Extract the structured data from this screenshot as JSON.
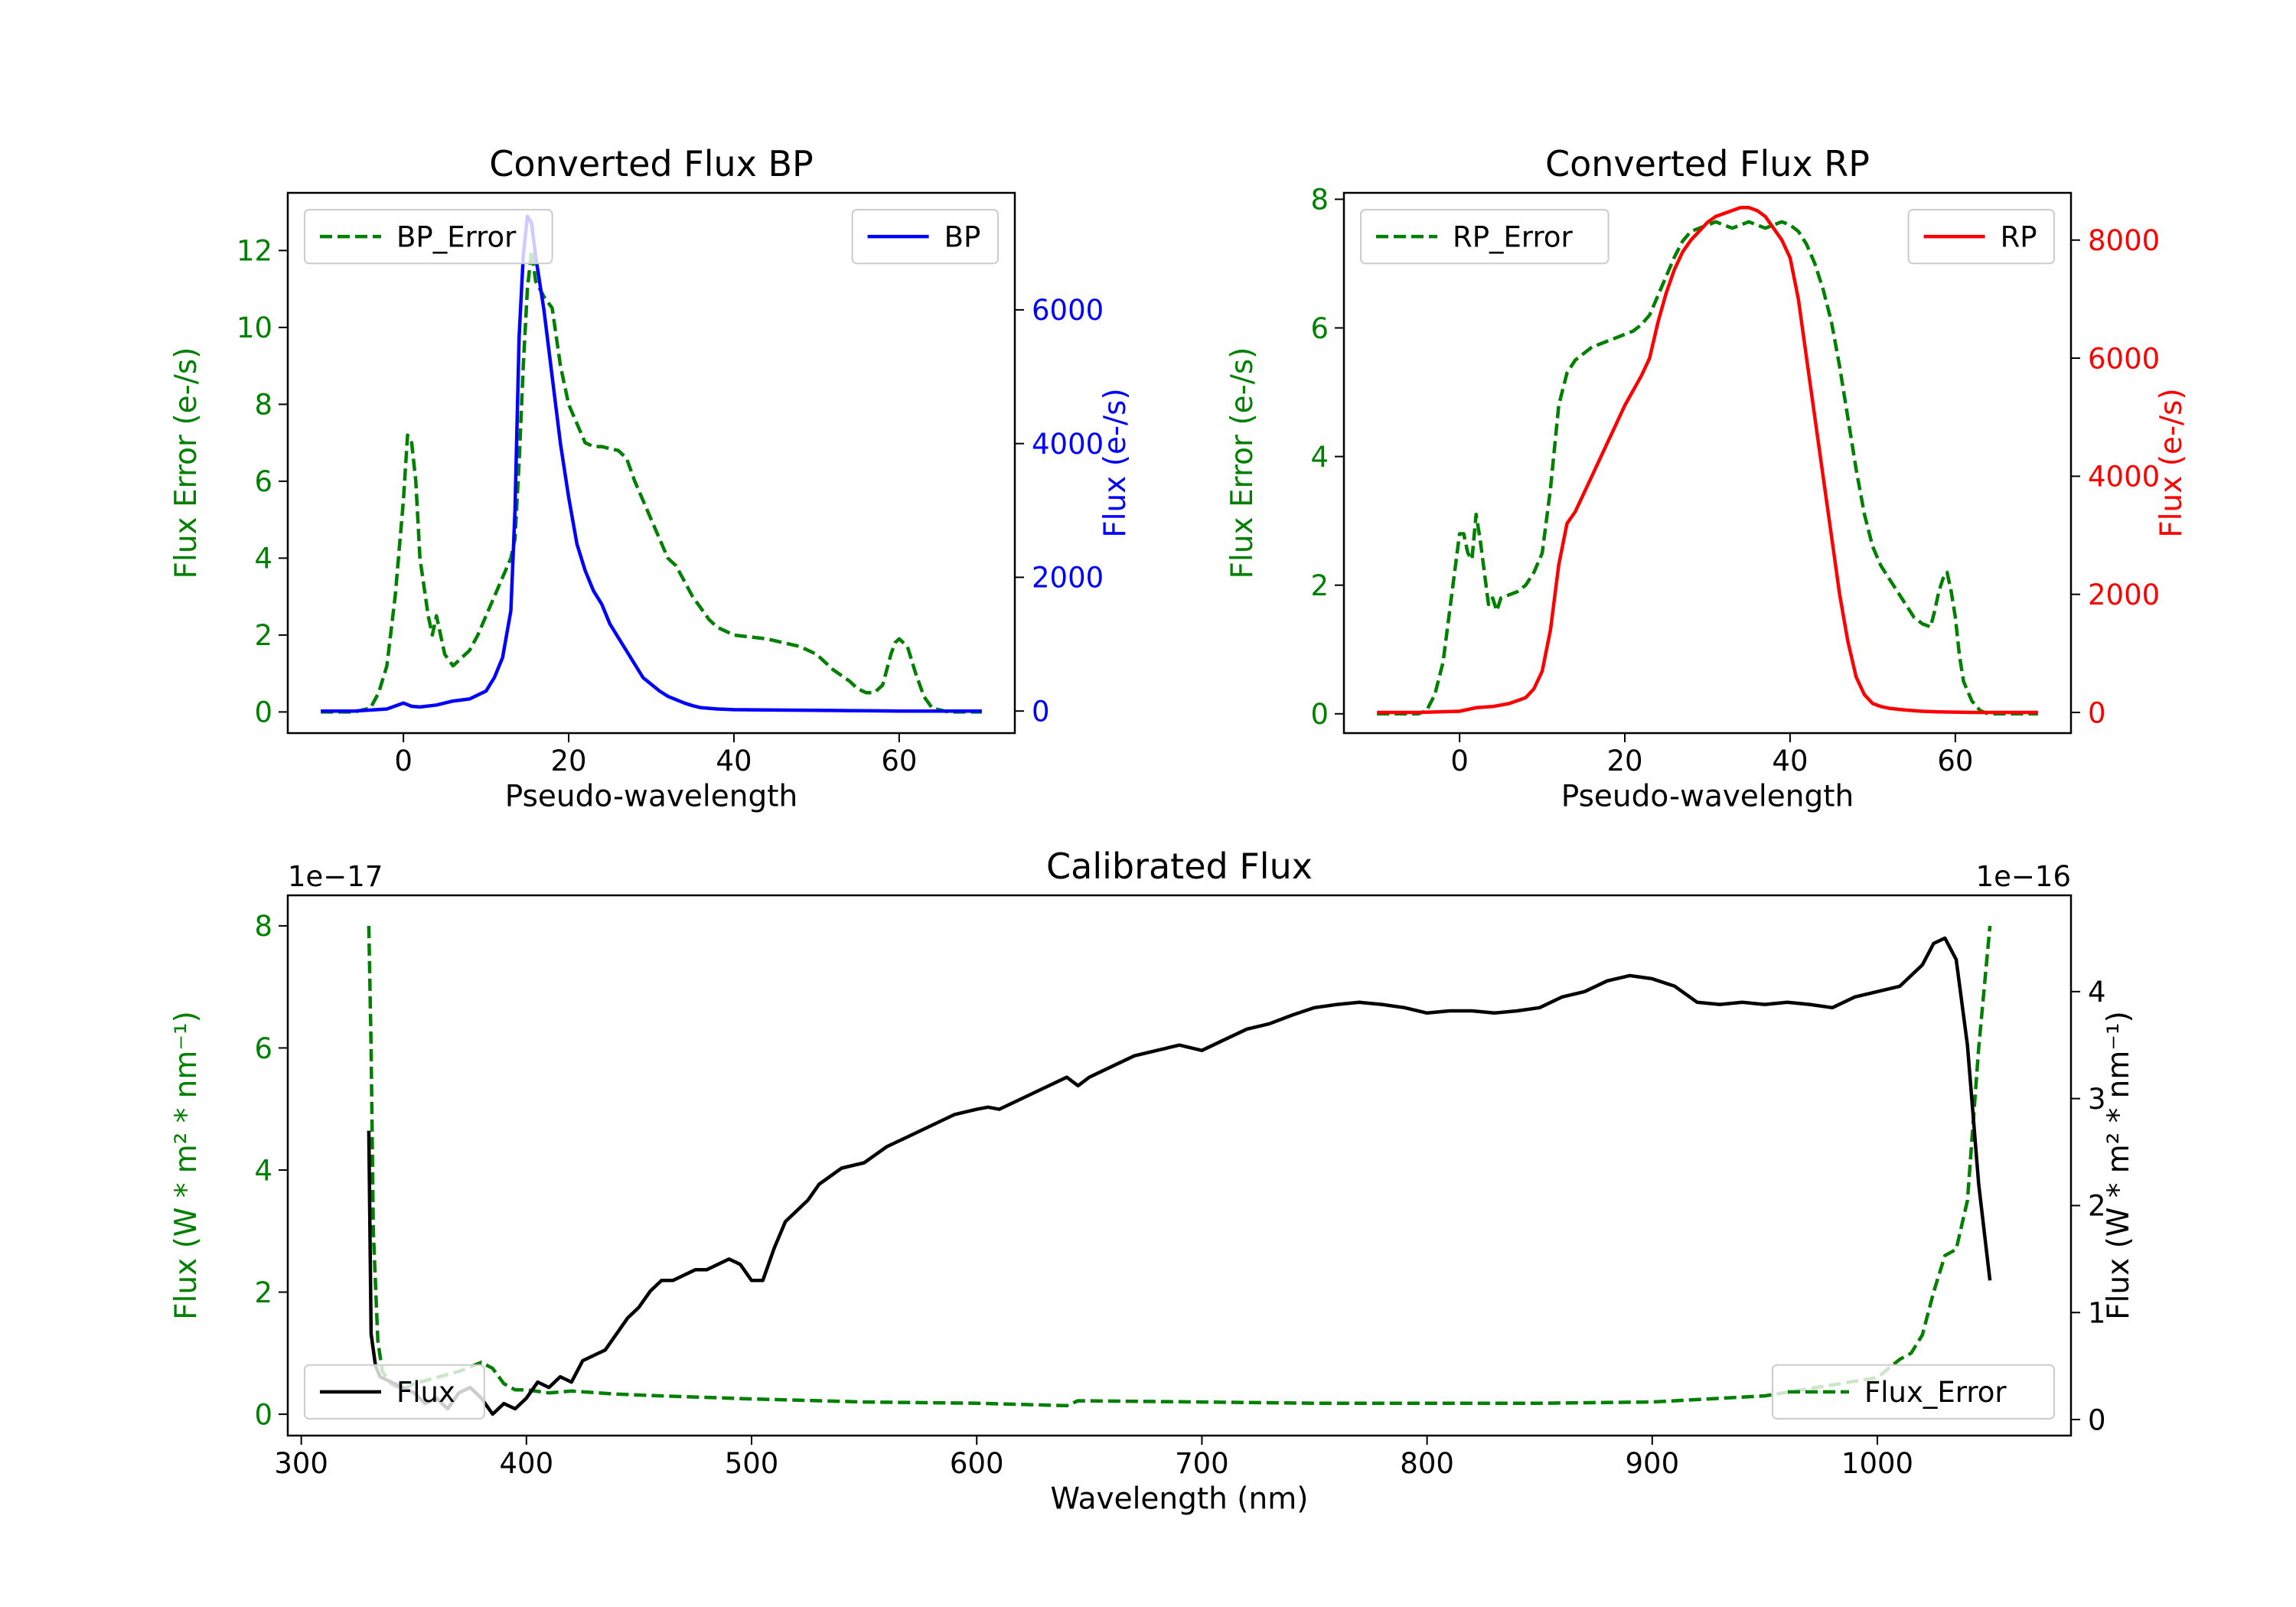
{
  "colors": {
    "error": "#008000",
    "bp": "#0000ff",
    "rp": "#ff0000",
    "flux": "#000000",
    "axis": "#000000"
  },
  "chart_data": [
    {
      "type": "line",
      "id": "bp",
      "title": "Converted Flux BP",
      "xlabel": "Pseudo-wavelength",
      "xlim": [
        -14,
        74
      ],
      "xticks": [
        0,
        20,
        40,
        60
      ],
      "left_axis": {
        "label": "Flux Error (e-/s)",
        "ylim": [
          -0.55,
          13.5
        ],
        "ticks": [
          0,
          2,
          4,
          6,
          8,
          10,
          12
        ]
      },
      "right_axis": {
        "label": "Flux (e-/s)",
        "ylim": [
          -330,
          7750
        ],
        "ticks": [
          0,
          2000,
          4000,
          6000
        ]
      },
      "series": [
        {
          "name": "BP_Error",
          "axis": "left",
          "style": "dashed",
          "color_key": "error",
          "x": [
            -10,
            -6,
            -4,
            -3,
            -2,
            -1,
            0,
            0.5,
            1,
            1.5,
            2,
            3,
            3.5,
            4,
            4.5,
            5,
            6,
            7,
            8,
            9,
            10,
            11,
            12,
            13,
            13.5,
            14,
            14.5,
            15,
            15.5,
            16,
            17,
            18,
            19,
            20,
            21,
            22,
            23,
            24,
            25,
            26,
            27,
            28,
            29,
            30,
            31,
            32,
            33,
            34,
            35,
            36,
            37,
            38,
            39,
            40,
            42,
            44,
            46,
            48,
            50,
            52,
            54,
            55,
            56,
            57,
            58,
            59,
            59.5,
            60,
            61,
            62,
            63,
            64,
            66,
            68,
            70
          ],
          "y": [
            0,
            0,
            0.1,
            0.5,
            1.2,
            3,
            5.5,
            7.2,
            7,
            6,
            4,
            2.5,
            2,
            2.5,
            2,
            1.5,
            1.2,
            1.4,
            1.6,
            2,
            2.5,
            3,
            3.5,
            4,
            4.5,
            6.5,
            9,
            11,
            12,
            11.2,
            10.8,
            10.5,
            9,
            8,
            7.5,
            7,
            6.9,
            6.9,
            6.85,
            6.8,
            6.6,
            6,
            5.5,
            5,
            4.5,
            4,
            3.8,
            3.4,
            3,
            2.7,
            2.4,
            2.2,
            2.1,
            2,
            1.95,
            1.9,
            1.8,
            1.7,
            1.5,
            1.1,
            0.8,
            0.6,
            0.5,
            0.5,
            0.7,
            1.5,
            1.8,
            1.9,
            1.7,
            1,
            0.4,
            0.1,
            0,
            0,
            0
          ]
        },
        {
          "name": "BP",
          "axis": "right",
          "style": "solid",
          "color_key": "bp",
          "x": [
            -10,
            -6,
            -2,
            0,
            1,
            2,
            4,
            6,
            8,
            10,
            11,
            12,
            13,
            13.5,
            14,
            14.5,
            15,
            15.5,
            16,
            17,
            18,
            19,
            20,
            21,
            22,
            23,
            24,
            25,
            26,
            27,
            28,
            29,
            30,
            31,
            32,
            33,
            34,
            35,
            36,
            38,
            40,
            45,
            50,
            55,
            60,
            65,
            70
          ],
          "y": [
            0,
            0,
            30,
            120,
            70,
            60,
            90,
            150,
            180,
            300,
            500,
            800,
            1500,
            3000,
            5600,
            6800,
            7400,
            7300,
            6800,
            6000,
            5000,
            4000,
            3200,
            2500,
            2100,
            1800,
            1600,
            1300,
            1100,
            900,
            700,
            500,
            400,
            300,
            220,
            170,
            120,
            80,
            50,
            30,
            20,
            15,
            10,
            5,
            0,
            0,
            0
          ]
        }
      ],
      "legend": [
        {
          "label": "BP_Error",
          "position": "upper-left"
        },
        {
          "label": "BP",
          "position": "upper-right"
        }
      ]
    },
    {
      "type": "line",
      "id": "rp",
      "title": "Converted Flux RP",
      "xlabel": "Pseudo-wavelength",
      "xlim": [
        -14,
        74
      ],
      "xticks": [
        0,
        20,
        40,
        60
      ],
      "left_axis": {
        "label": "Flux Error (e-/s)",
        "ylim": [
          -0.3,
          8.1
        ],
        "ticks": [
          0,
          2,
          4,
          6,
          8
        ]
      },
      "right_axis": {
        "label": "Flux (e-/s)",
        "ylim": [
          -350,
          8800
        ],
        "ticks": [
          0,
          2000,
          4000,
          6000,
          8000
        ]
      },
      "series": [
        {
          "name": "RP_Error",
          "axis": "left",
          "style": "dashed",
          "color_key": "error",
          "x": [
            -10,
            -5,
            -4,
            -3,
            -2,
            -1,
            0,
            0.5,
            1,
            1.5,
            2,
            2.5,
            3,
            3.5,
            4,
            4.5,
            5,
            6,
            7,
            8,
            9,
            10,
            11,
            12,
            13,
            14,
            15,
            16,
            17,
            18,
            19,
            20,
            21,
            22,
            23,
            24,
            25,
            26,
            27,
            28,
            29,
            30,
            31,
            32,
            33,
            34,
            35,
            36,
            37,
            38,
            39,
            40,
            41,
            42,
            43,
            44,
            45,
            46,
            47,
            48,
            49,
            50,
            51,
            52,
            53,
            54,
            55,
            56,
            57,
            57.5,
            58,
            58.5,
            59,
            59.5,
            60,
            60.5,
            61,
            62,
            63,
            64,
            65,
            66,
            67,
            68,
            69,
            70
          ],
          "y": [
            0,
            0,
            0.05,
            0.3,
            0.8,
            1.8,
            2.8,
            2.8,
            2.5,
            2.4,
            3.1,
            2.7,
            2.2,
            1.7,
            1.8,
            1.6,
            1.8,
            1.85,
            1.9,
            2,
            2.2,
            2.5,
            3.5,
            4.8,
            5.3,
            5.5,
            5.6,
            5.7,
            5.75,
            5.8,
            5.85,
            5.9,
            5.95,
            6.05,
            6.2,
            6.5,
            6.8,
            7.1,
            7.35,
            7.5,
            7.55,
            7.6,
            7.65,
            7.6,
            7.55,
            7.6,
            7.65,
            7.6,
            7.55,
            7.6,
            7.65,
            7.6,
            7.5,
            7.3,
            7,
            6.6,
            6.1,
            5.4,
            4.6,
            3.8,
            3.1,
            2.6,
            2.3,
            2.1,
            1.9,
            1.7,
            1.5,
            1.4,
            1.35,
            1.6,
            1.9,
            2.1,
            2.2,
            1.9,
            1.5,
            0.9,
            0.5,
            0.2,
            0.05,
            0,
            0,
            0,
            0,
            0,
            0,
            0
          ]
        },
        {
          "name": "RP",
          "axis": "right",
          "style": "solid",
          "color_key": "rp",
          "x": [
            -10,
            -5,
            0,
            2,
            4,
            6,
            8,
            9,
            10,
            11,
            12,
            13,
            14,
            15,
            16,
            17,
            18,
            19,
            20,
            21,
            22,
            23,
            24,
            25,
            26,
            27,
            28,
            29,
            30,
            31,
            32,
            33,
            34,
            35,
            36,
            37,
            38,
            39,
            40,
            41,
            42,
            43,
            44,
            45,
            46,
            47,
            48,
            49,
            50,
            51,
            52,
            54,
            56,
            58,
            60,
            62,
            65,
            70
          ],
          "y": [
            0,
            0,
            20,
            80,
            100,
            150,
            250,
            400,
            700,
            1400,
            2500,
            3200,
            3400,
            3700,
            4000,
            4300,
            4600,
            4900,
            5200,
            5450,
            5700,
            6000,
            6600,
            7100,
            7500,
            7800,
            8000,
            8150,
            8300,
            8400,
            8450,
            8500,
            8550,
            8550,
            8500,
            8400,
            8200,
            8000,
            7700,
            7000,
            6000,
            5000,
            4000,
            3000,
            2000,
            1200,
            600,
            300,
            150,
            100,
            70,
            40,
            20,
            10,
            5,
            0,
            0,
            0
          ]
        }
      ],
      "legend": [
        {
          "label": "RP_Error",
          "position": "upper-left"
        },
        {
          "label": "RP",
          "position": "upper-right"
        }
      ]
    },
    {
      "type": "line",
      "id": "cal",
      "title": "Calibrated Flux",
      "xlabel": "Wavelength (nm)",
      "xlim": [
        294,
        1086
      ],
      "xticks": [
        300,
        400,
        500,
        600,
        700,
        800,
        900,
        1000
      ],
      "left_axis": {
        "label": "Flux (W * m² * nm⁻¹)",
        "offset_label": "1e−17",
        "ylim": [
          -0.35,
          8.5
        ],
        "ticks": [
          0,
          2,
          4,
          6,
          8
        ]
      },
      "right_axis": {
        "label": "Flux (W * m² * nm⁻¹)",
        "offset_label": "1e−16",
        "ylim": [
          -0.15,
          4.9
        ],
        "ticks": [
          0,
          1,
          2,
          3,
          4
        ]
      },
      "series": [
        {
          "name": "Flux_Error",
          "axis": "left",
          "style": "dashed",
          "color_key": "error",
          "x": [
            330,
            331,
            332,
            334,
            336,
            340,
            345,
            350,
            360,
            370,
            380,
            385,
            390,
            395,
            400,
            410,
            420,
            440,
            460,
            500,
            550,
            600,
            640,
            645,
            700,
            750,
            800,
            850,
            900,
            950,
            1000,
            1010,
            1015,
            1020,
            1025,
            1030,
            1035,
            1040,
            1045,
            1050
          ],
          "y": [
            8,
            6,
            3,
            1.2,
            0.7,
            0.5,
            0.4,
            0.5,
            0.6,
            0.7,
            0.85,
            0.75,
            0.5,
            0.4,
            0.4,
            0.35,
            0.38,
            0.33,
            0.3,
            0.25,
            0.2,
            0.18,
            0.14,
            0.22,
            0.2,
            0.18,
            0.18,
            0.18,
            0.2,
            0.3,
            0.6,
            0.9,
            1.0,
            1.3,
            2,
            2.6,
            2.7,
            3.5,
            6,
            8
          ]
        },
        {
          "name": "Flux",
          "axis": "right",
          "style": "solid",
          "color_key": "flux",
          "x": [
            330,
            331,
            333,
            335,
            340,
            345,
            350,
            355,
            360,
            365,
            370,
            375,
            380,
            385,
            390,
            395,
            400,
            405,
            410,
            415,
            420,
            425,
            430,
            435,
            440,
            445,
            450,
            455,
            460,
            465,
            470,
            475,
            480,
            485,
            490,
            495,
            500,
            505,
            510,
            515,
            520,
            525,
            530,
            540,
            550,
            560,
            570,
            580,
            590,
            600,
            605,
            610,
            620,
            630,
            640,
            645,
            650,
            660,
            670,
            680,
            690,
            700,
            710,
            720,
            730,
            740,
            750,
            760,
            770,
            780,
            790,
            800,
            810,
            820,
            830,
            840,
            850,
            860,
            870,
            880,
            890,
            900,
            910,
            920,
            930,
            940,
            950,
            960,
            970,
            980,
            990,
            1000,
            1010,
            1020,
            1025,
            1030,
            1035,
            1040,
            1045,
            1050
          ],
          "y": [
            2.7,
            0.8,
            0.5,
            0.4,
            0.35,
            0.3,
            0.25,
            0.15,
            0.2,
            0.1,
            0.25,
            0.3,
            0.2,
            0.05,
            0.15,
            0.1,
            0.2,
            0.35,
            0.3,
            0.4,
            0.35,
            0.55,
            0.6,
            0.65,
            0.8,
            0.95,
            1.05,
            1.2,
            1.3,
            1.3,
            1.35,
            1.4,
            1.4,
            1.45,
            1.5,
            1.45,
            1.3,
            1.3,
            1.6,
            1.85,
            1.95,
            2.05,
            2.2,
            2.35,
            2.4,
            2.55,
            2.65,
            2.75,
            2.85,
            2.9,
            2.92,
            2.9,
            3.0,
            3.1,
            3.2,
            3.12,
            3.2,
            3.3,
            3.4,
            3.45,
            3.5,
            3.45,
            3.55,
            3.65,
            3.7,
            3.78,
            3.85,
            3.88,
            3.9,
            3.88,
            3.85,
            3.8,
            3.82,
            3.82,
            3.8,
            3.82,
            3.85,
            3.95,
            4.0,
            4.1,
            4.15,
            4.12,
            4.05,
            3.9,
            3.88,
            3.9,
            3.88,
            3.9,
            3.88,
            3.85,
            3.95,
            4.0,
            4.05,
            4.25,
            4.45,
            4.5,
            4.3,
            3.5,
            2.2,
            1.3
          ]
        }
      ],
      "legend": [
        {
          "label": "Flux",
          "position": "lower-left"
        },
        {
          "label": "Flux_Error",
          "position": "lower-right"
        }
      ]
    }
  ]
}
